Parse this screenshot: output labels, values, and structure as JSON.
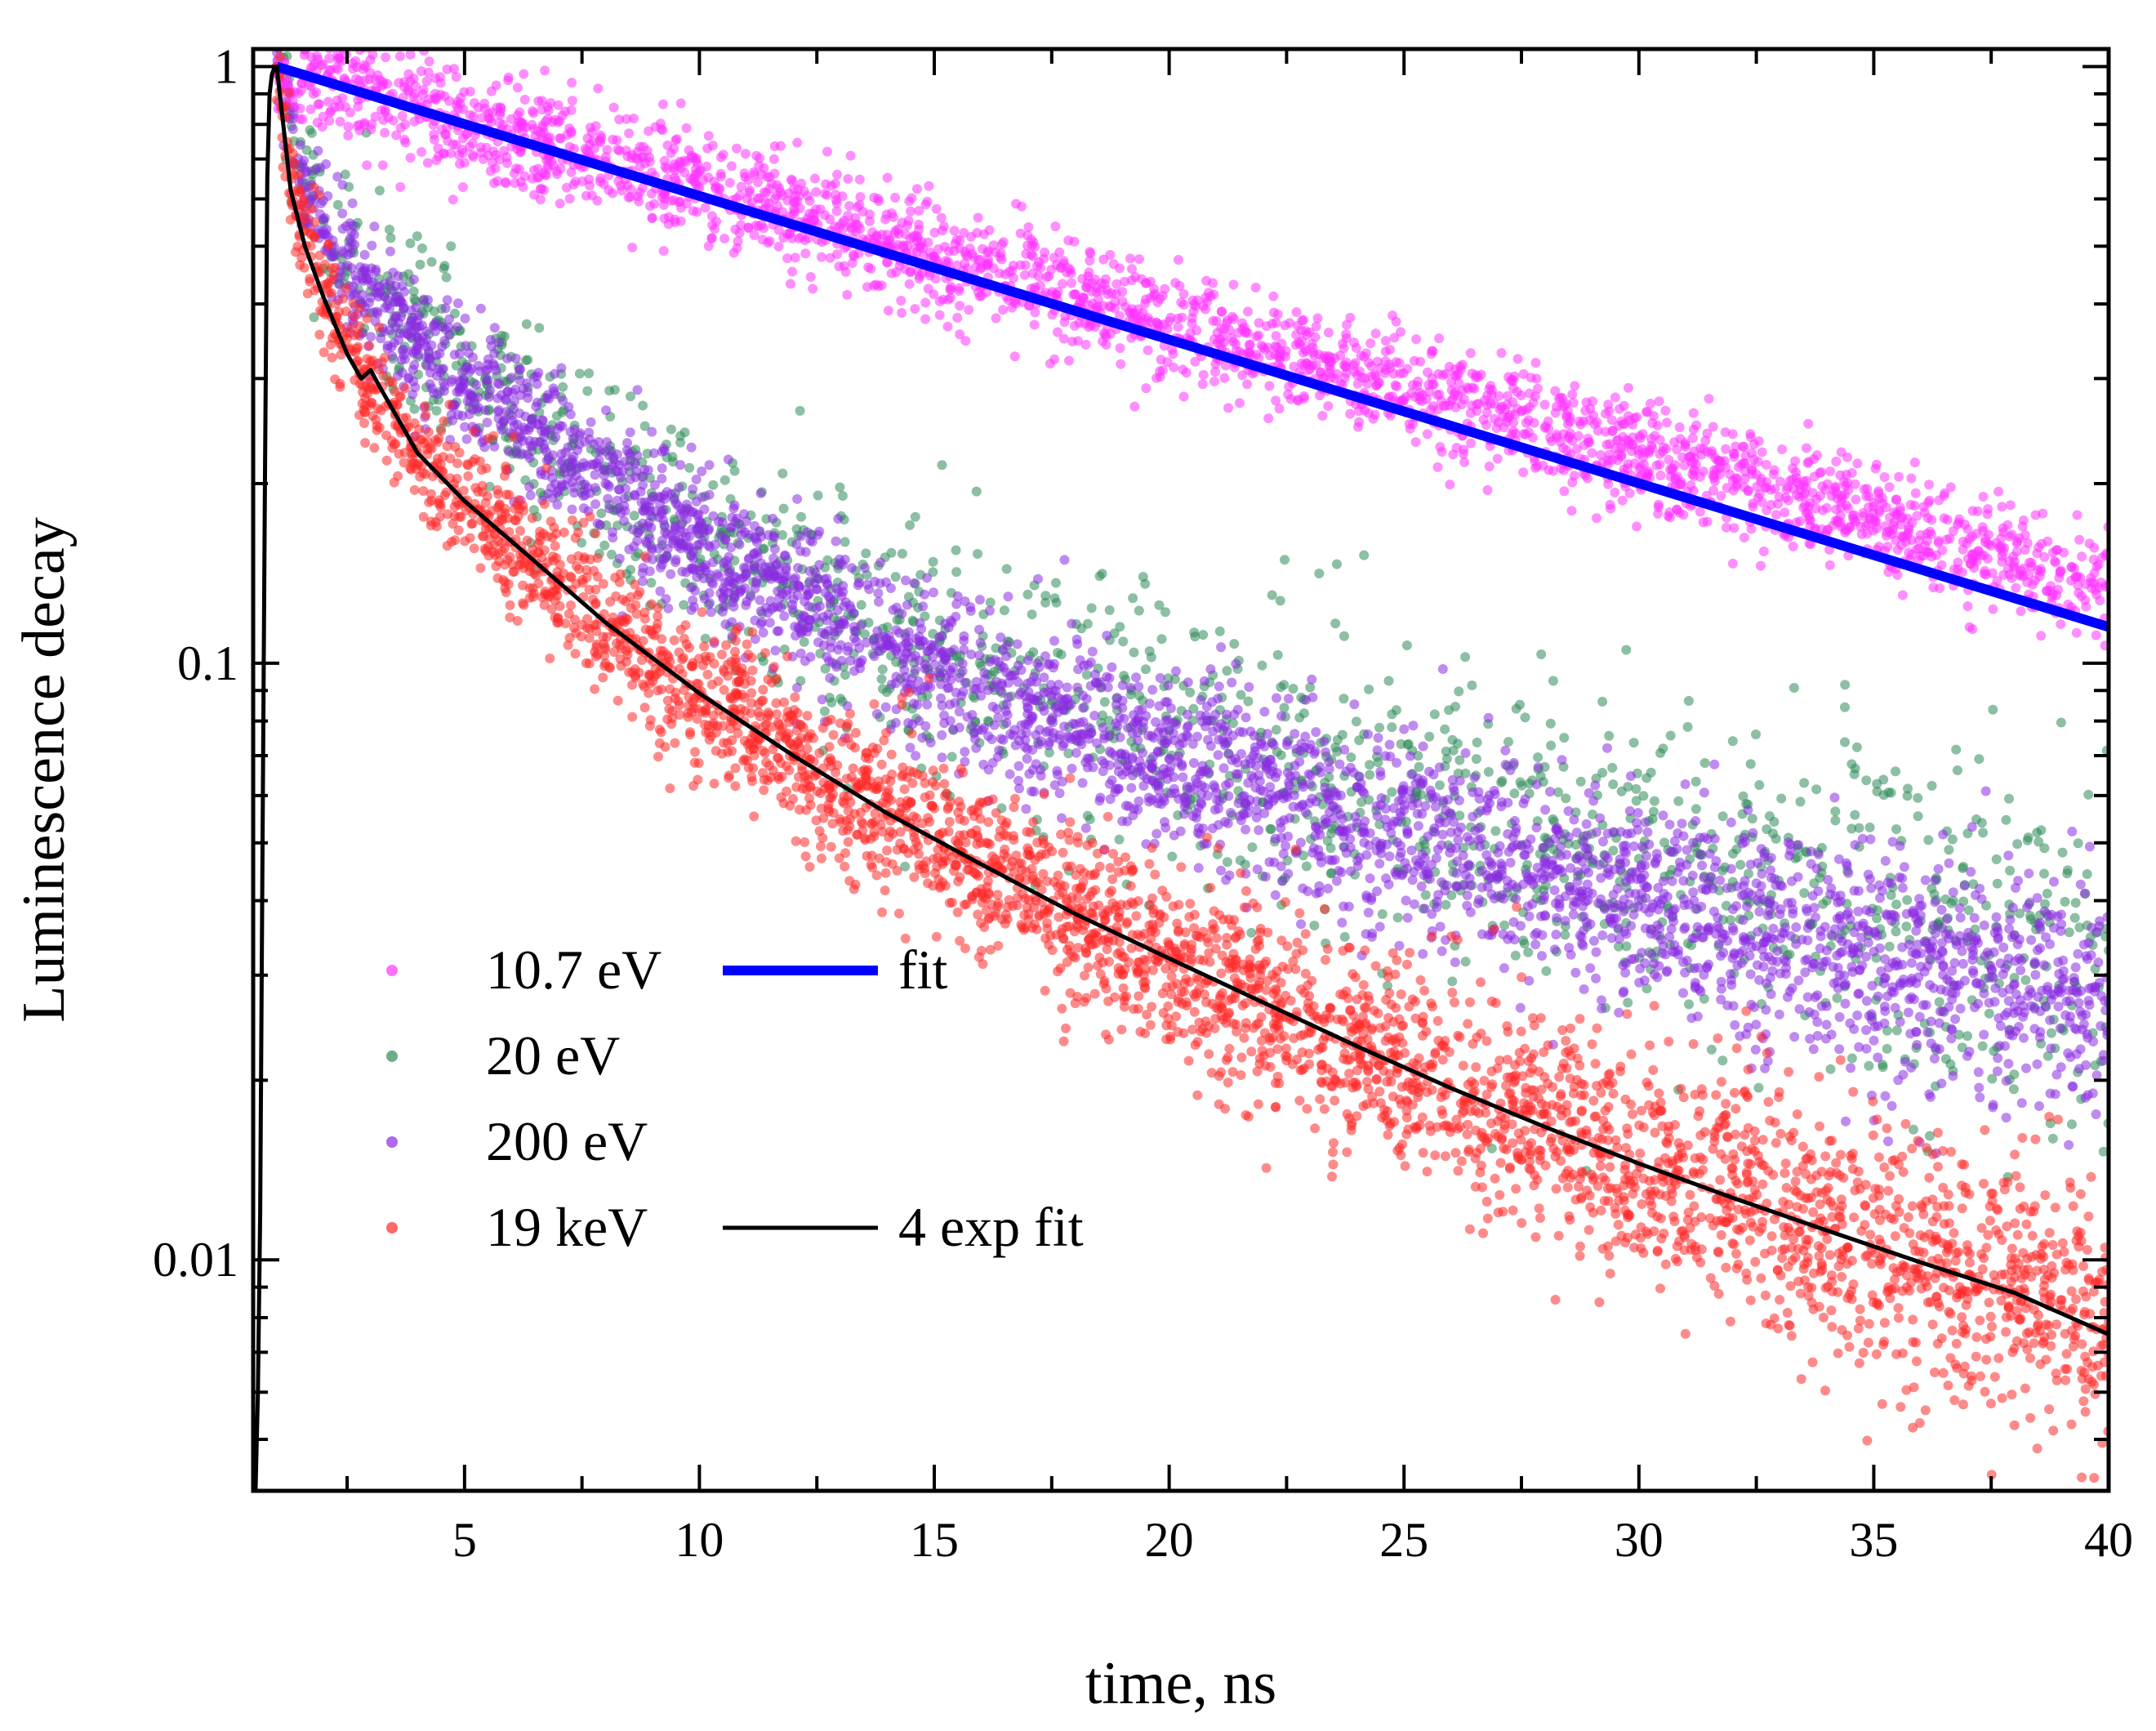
{
  "chart_data": {
    "type": "scatter",
    "title": "",
    "xlabel": "time, ns",
    "ylabel": "Luminescence decay",
    "xlim": [
      0.5,
      40
    ],
    "ylim": [
      0.0041,
      1.07
    ],
    "yscale": "log",
    "x_ticks": [
      5,
      10,
      15,
      20,
      25,
      30,
      35,
      40
    ],
    "x_tick_labels": [
      "5",
      "10",
      "15",
      "20",
      "25",
      "30",
      "35",
      "40"
    ],
    "y_ticks": [
      0.01,
      0.1,
      1
    ],
    "y_tick_labels": [
      "0.01",
      "0.1",
      "1"
    ],
    "grid": false,
    "legend_position": "bottom-left",
    "series": [
      {
        "name": "10.7 eV",
        "kind": "scatter",
        "color": "#ff33ff",
        "x": [
          1.0,
          2,
          4,
          6,
          8,
          10,
          12,
          14,
          16,
          18,
          20,
          22,
          24,
          26,
          28,
          30,
          32,
          34,
          36,
          38,
          40
        ],
        "y": [
          1.0,
          0.945,
          0.852,
          0.769,
          0.694,
          0.626,
          0.565,
          0.509,
          0.46,
          0.415,
          0.374,
          0.338,
          0.304,
          0.275,
          0.248,
          0.224,
          0.202,
          0.182,
          0.164,
          0.148,
          0.134
        ]
      },
      {
        "name": "20 eV",
        "kind": "scatter",
        "color": "#2e8b57",
        "x": [
          1.0,
          1.5,
          2,
          3,
          4,
          5,
          6,
          8,
          10,
          12,
          14,
          16,
          18,
          20,
          22,
          24,
          26,
          28,
          30,
          32,
          34,
          36,
          38,
          40
        ],
        "y": [
          1.0,
          0.68,
          0.55,
          0.42,
          0.35,
          0.31,
          0.27,
          0.21,
          0.165,
          0.135,
          0.115,
          0.099,
          0.087,
          0.077,
          0.069,
          0.062,
          0.056,
          0.051,
          0.047,
          0.043,
          0.04,
          0.037,
          0.035,
          0.033
        ]
      },
      {
        "name": "200 eV",
        "kind": "scatter",
        "color": "#8a2be2",
        "x": [
          1.0,
          1.5,
          2,
          3,
          4,
          5,
          6,
          8,
          10,
          12,
          14,
          16,
          18,
          20,
          22,
          24,
          26,
          28,
          30,
          32,
          34,
          36,
          38,
          40
        ],
        "y": [
          1.0,
          0.66,
          0.53,
          0.41,
          0.34,
          0.295,
          0.26,
          0.2,
          0.158,
          0.128,
          0.107,
          0.091,
          0.079,
          0.069,
          0.061,
          0.054,
          0.049,
          0.044,
          0.04,
          0.036,
          0.033,
          0.031,
          0.029,
          0.027
        ]
      },
      {
        "name": "19 keV",
        "kind": "scatter",
        "color": "#ff2a2a",
        "x": [
          1.0,
          1.3,
          1.6,
          2,
          2.5,
          3,
          4,
          5,
          6,
          8,
          10,
          12,
          14,
          16,
          18,
          20,
          22,
          24,
          26,
          28,
          30,
          32,
          34,
          36,
          38,
          40
        ],
        "y": [
          1.0,
          0.67,
          0.53,
          0.43,
          0.35,
          0.29,
          0.225,
          0.187,
          0.16,
          0.117,
          0.089,
          0.07,
          0.056,
          0.046,
          0.038,
          0.032,
          0.027,
          0.0228,
          0.0194,
          0.0167,
          0.0145,
          0.0127,
          0.0112,
          0.0099,
          0.0088,
          0.0079
        ]
      },
      {
        "name": "fit",
        "kind": "line",
        "color": "#0000ff",
        "width": "thick",
        "x": [
          1.0,
          40
        ],
        "y": [
          1.0,
          0.115
        ]
      },
      {
        "name": "4 exp fit",
        "kind": "line",
        "color": "#000000",
        "width": "thin",
        "x": [
          0.55,
          0.6,
          0.65,
          0.7,
          0.75,
          0.8,
          0.85,
          0.9,
          0.95,
          1.0,
          1.3,
          1.6,
          2,
          2.5,
          2.8,
          3.0,
          3.2,
          4,
          5,
          6,
          8,
          10,
          12,
          14,
          16,
          18,
          20,
          22,
          24,
          26,
          28,
          30,
          32,
          34,
          36,
          38,
          40
        ],
        "y": [
          0.0041,
          0.006,
          0.012,
          0.05,
          0.2,
          0.65,
          0.9,
          0.97,
          0.995,
          1.0,
          0.62,
          0.5,
          0.41,
          0.33,
          0.3,
          0.31,
          0.29,
          0.225,
          0.187,
          0.16,
          0.117,
          0.089,
          0.07,
          0.056,
          0.046,
          0.038,
          0.032,
          0.027,
          0.0228,
          0.0194,
          0.0167,
          0.0145,
          0.0127,
          0.0112,
          0.0099,
          0.0088,
          0.0075
        ]
      }
    ],
    "legend": {
      "rows": [
        {
          "label": "10.7 eV",
          "line_label": "fit"
        },
        {
          "label": "20 eV"
        },
        {
          "label": "200 eV"
        },
        {
          "label": "19 keV",
          "line_label": "4 exp fit"
        }
      ]
    }
  }
}
